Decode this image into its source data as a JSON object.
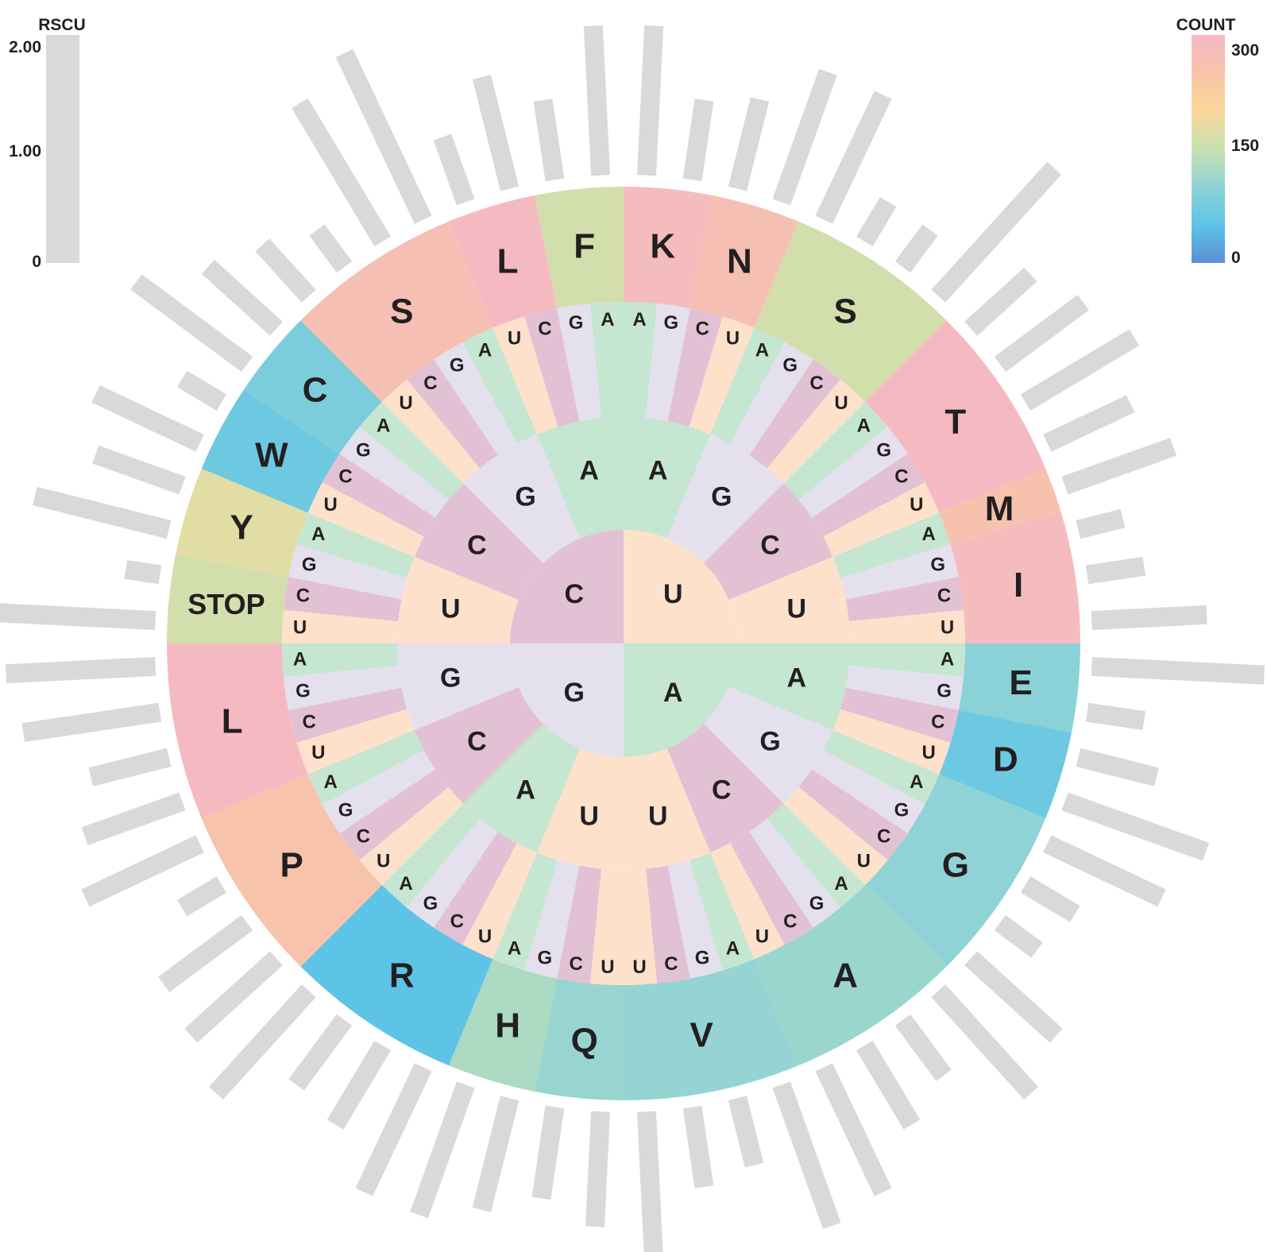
{
  "chart_data": {
    "type": "radial-bar",
    "rscu_legend": {
      "title": "RSCU",
      "ticks": [
        "2.00",
        "1.00",
        "0"
      ],
      "range": [
        0,
        2
      ]
    },
    "count_legend": {
      "title": "COUNT",
      "ticks": [
        "300",
        "150",
        "0"
      ],
      "range": [
        0,
        300
      ],
      "colors": [
        "#f4b8c7",
        "#f7c4a8",
        "#fbd79a",
        "#c8e0b0",
        "#8fd3d6",
        "#5ec4e6",
        "#5a8fd6"
      ]
    },
    "inner_ring": [
      "U",
      "A",
      "G",
      "C"
    ],
    "middle_ring": [
      [
        "U",
        "A"
      ],
      [
        "A",
        "G"
      ],
      [
        "A",
        "C"
      ],
      [
        "A",
        "U"
      ],
      [
        "G",
        "A"
      ],
      [
        "G",
        "G"
      ],
      [
        "G",
        "C"
      ],
      [
        "G",
        "U"
      ],
      [
        "C",
        "U"
      ],
      [
        "C",
        "A"
      ],
      [
        "C",
        "C"
      ],
      [
        "C",
        "G"
      ],
      [
        "U",
        "U"
      ],
      [
        "U",
        "C"
      ],
      [
        "U",
        "G"
      ],
      [
        "U",
        "A"
      ]
    ],
    "codons_third": [
      "A",
      "G",
      "C",
      "U",
      "A",
      "G",
      "C",
      "U",
      "A",
      "G",
      "C",
      "U",
      "A",
      "G",
      "C",
      "U",
      "A",
      "G",
      "C",
      "U",
      "A",
      "G",
      "C",
      "U",
      "A",
      "G",
      "C",
      "U",
      "A",
      "G",
      "C",
      "U",
      "U",
      "C",
      "G",
      "A",
      "U",
      "C",
      "G",
      "A",
      "U",
      "C",
      "G",
      "A",
      "U",
      "C",
      "G",
      "A",
      "U",
      "C",
      "G",
      "A",
      "U",
      "C",
      "G",
      "A",
      "U",
      "C",
      "G",
      "A",
      "U",
      "C",
      "G",
      "A"
    ],
    "amino_acids": [
      {
        "label": "K",
        "start": 0,
        "span": 2,
        "count": 285
      },
      {
        "label": "N",
        "start": 2,
        "span": 2,
        "count": 270
      },
      {
        "label": "S",
        "start": 4,
        "span": 4,
        "count": 160
      },
      {
        "label": "T",
        "start": 8,
        "span": 4,
        "count": 290
      },
      {
        "label": "M",
        "start": 12,
        "span": 1,
        "count": 260
      },
      {
        "label": "I",
        "start": 13,
        "span": 3,
        "count": 285
      },
      {
        "label": "E",
        "start": 16,
        "span": 2,
        "count": 95
      },
      {
        "label": "D",
        "start": 18,
        "span": 2,
        "count": 65
      },
      {
        "label": "G",
        "start": 20,
        "span": 4,
        "count": 100
      },
      {
        "label": "A",
        "start": 24,
        "span": 4,
        "count": 110
      },
      {
        "label": "V",
        "start": 28,
        "span": 4,
        "count": 105
      },
      {
        "label": "Q",
        "start": 32,
        "span": 2,
        "count": 108
      },
      {
        "label": "H",
        "start": 34,
        "span": 2,
        "count": 125
      },
      {
        "label": "R",
        "start": 36,
        "span": 4,
        "count": 50
      },
      {
        "label": "P",
        "start": 40,
        "span": 4,
        "count": 255
      },
      {
        "label": "L",
        "start": 44,
        "span": 4,
        "count": 290
      },
      {
        "label": "STOP",
        "start": 48,
        "span": 2,
        "count": 160
      },
      {
        "label": "Y",
        "start": 50,
        "span": 2,
        "count": 175
      },
      {
        "label": "W",
        "start": 52,
        "span": 2,
        "count": 65
      },
      {
        "label": "C",
        "start": 54,
        "span": 2,
        "count": 80
      },
      {
        "label": "S",
        "start": 56,
        "span": 4,
        "count": 270
      },
      {
        "label": "L",
        "start": 60,
        "span": 2,
        "count": 290
      },
      {
        "label": "F",
        "start": 62,
        "span": 2,
        "count": 160
      }
    ],
    "rscu": [
      1.3,
      0.7,
      0.8,
      1.2,
      1.2,
      0.4,
      0.4,
      1.5,
      0.7,
      0.9,
      1.1,
      0.8,
      1.0,
      0.4,
      0.5,
      1.0,
      1.5,
      0.5,
      0.7,
      1.3,
      1.1,
      0.5,
      0.4,
      1.0,
      1.2,
      0.6,
      0.8,
      1.2,
      1.3,
      0.6,
      0.7,
      1.4,
      1.0,
      0.8,
      1.0,
      1.2,
      1.2,
      0.8,
      0.7,
      1.2,
      1.0,
      0.9,
      0.4,
      1.1,
      0.9,
      0.7,
      1.2,
      1.3,
      1.4,
      0.3,
      1.2,
      0.8,
      1.0,
      0.4,
      1.2,
      0.8,
      0.6,
      0.4,
      1.4,
      1.6,
      0.6,
      1.0,
      0.7,
      1.3
    ]
  },
  "nucleotide_colors": {
    "U": "#fde1cb",
    "A": "#c5e6d0",
    "G": "#e4e0ee",
    "C": "#e3c1d4"
  }
}
